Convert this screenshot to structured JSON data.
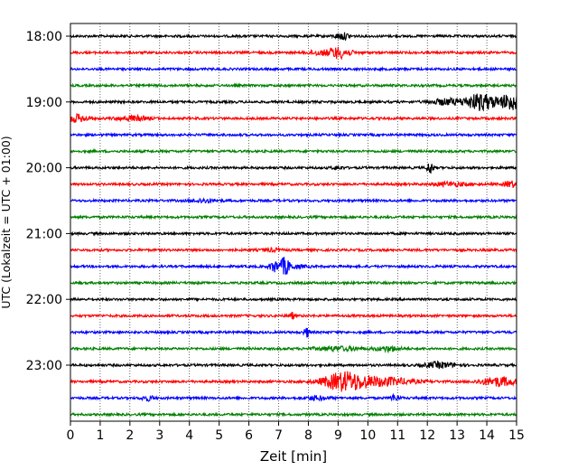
{
  "chart_data": {
    "type": "line",
    "title": "",
    "xlabel": "Zeit  [min]",
    "ylabel": "UTC (Lokalzeit = UTC + 01:00)",
    "xlim": [
      0,
      15
    ],
    "x_ticks": [
      "0",
      "1",
      "2",
      "3",
      "4",
      "5",
      "6",
      "7",
      "8",
      "9",
      "10",
      "11",
      "12",
      "13",
      "14",
      "15"
    ],
    "y_ticks": [
      {
        "label": "18:00",
        "trace_index": 0
      },
      {
        "label": "19:00",
        "trace_index": 4
      },
      {
        "label": "20:00",
        "trace_index": 8
      },
      {
        "label": "21:00",
        "trace_index": 12
      },
      {
        "label": "22:00",
        "trace_index": 16
      },
      {
        "label": "23:00",
        "trace_index": 20
      }
    ],
    "grid": "vertical dotted",
    "colors": [
      "#000000",
      "#ff0000",
      "#0000ff",
      "#008000"
    ],
    "traces": [
      {
        "start": "18:00",
        "color": "#000000",
        "events": [
          {
            "t": 9.15,
            "amp": 0.35,
            "dur": 0.25
          }
        ]
      },
      {
        "start": "18:15",
        "color": "#ff0000",
        "events": [
          {
            "t": 8.25,
            "amp": 0.2,
            "dur": 0.3
          },
          {
            "t": 9.0,
            "amp": 0.6,
            "dur": 0.4
          }
        ]
      },
      {
        "start": "18:30",
        "color": "#0000ff",
        "events": []
      },
      {
        "start": "18:45",
        "color": "#008000",
        "events": []
      },
      {
        "start": "19:00",
        "color": "#000000",
        "events": [
          {
            "t": 12.6,
            "amp": 0.3,
            "dur": 0.5
          },
          {
            "t": 13.8,
            "amp": 0.9,
            "dur": 0.6
          },
          {
            "t": 14.8,
            "amp": 0.9,
            "dur": 0.3
          }
        ]
      },
      {
        "start": "19:15",
        "color": "#ff0000",
        "events": [
          {
            "t": 0.2,
            "amp": 0.4,
            "dur": 0.4
          },
          {
            "t": 2.1,
            "amp": 0.25,
            "dur": 0.5
          }
        ]
      },
      {
        "start": "19:30",
        "color": "#0000ff",
        "events": []
      },
      {
        "start": "19:45",
        "color": "#008000",
        "events": []
      },
      {
        "start": "20:00",
        "color": "#000000",
        "events": [
          {
            "t": 12.1,
            "amp": 0.7,
            "dur": 0.1
          },
          {
            "t": 9.0,
            "amp": 0.15,
            "dur": 0.2
          }
        ]
      },
      {
        "start": "20:15",
        "color": "#ff0000",
        "events": [
          {
            "t": 12.8,
            "amp": 0.2,
            "dur": 0.6
          },
          {
            "t": 14.8,
            "amp": 0.35,
            "dur": 0.2
          }
        ]
      },
      {
        "start": "20:30",
        "color": "#0000ff",
        "events": [
          {
            "t": 4.5,
            "amp": 0.2,
            "dur": 0.4
          }
        ]
      },
      {
        "start": "20:45",
        "color": "#008000",
        "events": []
      },
      {
        "start": "21:00",
        "color": "#000000",
        "events": []
      },
      {
        "start": "21:15",
        "color": "#ff0000",
        "events": [
          {
            "t": 6.8,
            "amp": 0.15,
            "dur": 0.3
          }
        ]
      },
      {
        "start": "21:30",
        "color": "#0000ff",
        "events": [
          {
            "t": 6.85,
            "amp": 0.6,
            "dur": 0.15
          },
          {
            "t": 7.2,
            "amp": 0.9,
            "dur": 0.15
          },
          {
            "t": 7.5,
            "amp": 0.2,
            "dur": 0.4
          }
        ]
      },
      {
        "start": "21:45",
        "color": "#008000",
        "events": []
      },
      {
        "start": "22:00",
        "color": "#000000",
        "events": []
      },
      {
        "start": "22:15",
        "color": "#ff0000",
        "events": [
          {
            "t": 7.45,
            "amp": 0.35,
            "dur": 0.08
          }
        ]
      },
      {
        "start": "22:30",
        "color": "#0000ff",
        "events": [
          {
            "t": 7.95,
            "amp": 0.5,
            "dur": 0.1
          }
        ]
      },
      {
        "start": "22:45",
        "color": "#008000",
        "events": [
          {
            "t": 9.0,
            "amp": 0.2,
            "dur": 0.8
          },
          {
            "t": 10.7,
            "amp": 0.25,
            "dur": 0.4
          }
        ]
      },
      {
        "start": "23:00",
        "color": "#000000",
        "events": [
          {
            "t": 12.4,
            "amp": 0.3,
            "dur": 0.5
          }
        ]
      },
      {
        "start": "23:15",
        "color": "#ff0000",
        "events": [
          {
            "t": 9.2,
            "amp": 1.0,
            "dur": 0.7
          },
          {
            "t": 10.5,
            "amp": 0.45,
            "dur": 1.0
          },
          {
            "t": 14.4,
            "amp": 0.5,
            "dur": 0.6
          }
        ]
      },
      {
        "start": "23:30",
        "color": "#0000ff",
        "events": [
          {
            "t": 2.6,
            "amp": 0.25,
            "dur": 0.2
          },
          {
            "t": 8.3,
            "amp": 0.2,
            "dur": 0.4
          },
          {
            "t": 10.9,
            "amp": 0.35,
            "dur": 0.15
          }
        ]
      },
      {
        "start": "23:45",
        "color": "#008000",
        "events": []
      }
    ]
  }
}
